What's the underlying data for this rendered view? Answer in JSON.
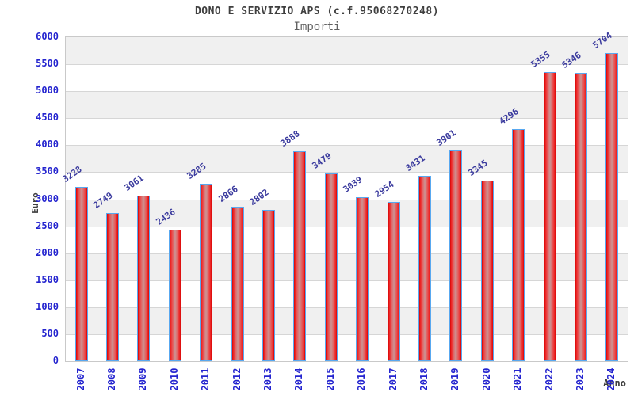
{
  "header": {
    "title": "DONO E SERVIZIO APS (c.f.95068270248)",
    "subtitle": "Importi"
  },
  "chart_data": {
    "type": "bar",
    "title": "DONO E SERVIZIO APS (c.f.95068270248)",
    "subtitle": "Importi",
    "categories": [
      "2007",
      "2008",
      "2009",
      "2010",
      "2011",
      "2012",
      "2013",
      "2014",
      "2015",
      "2016",
      "2017",
      "2018",
      "2019",
      "2020",
      "2021",
      "2022",
      "2023",
      "2024"
    ],
    "values": [
      3228,
      2749,
      3061,
      2436,
      3285,
      2866,
      2802,
      3888,
      3479,
      3039,
      2954,
      3431,
      3901,
      3345,
      4296,
      5355,
      5346,
      5704
    ],
    "xlabel": "Anno",
    "ylabel": "Euro",
    "ylim": [
      0,
      6000
    ],
    "ytick_step": 500,
    "yticks": [
      0,
      500,
      1000,
      1500,
      2000,
      2500,
      3000,
      3500,
      4000,
      4500,
      5000,
      5500,
      6000
    ],
    "legend": "none",
    "grid": "horizontal-bands",
    "colors": {
      "band_gray": "#f0f0f0",
      "band_white": "#ffffff",
      "gridline": "#d6d6d6",
      "plot_border": "#c9c9c9",
      "bar_border": "#58a8f0",
      "bar_red_edge": "#d80404",
      "bar_red_center": "#cc9494",
      "tick_label": "#2424cf",
      "value_label": "#3b3b9e",
      "title": "#3f3f3f",
      "subtitle": "#5f5f5f"
    }
  }
}
